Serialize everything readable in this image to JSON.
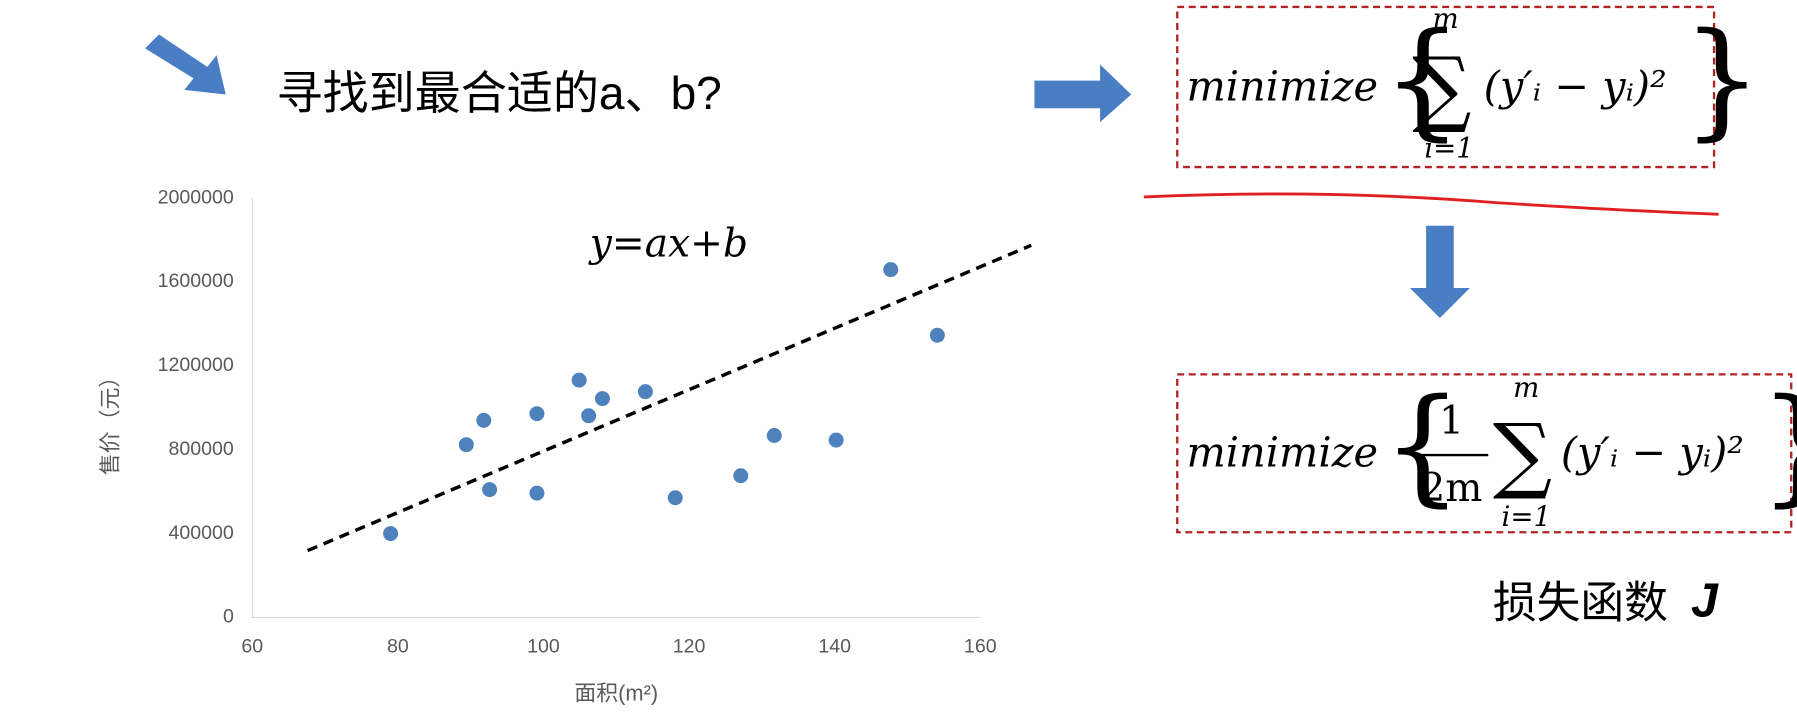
{
  "heading": "寻找到最合适的a、b?",
  "chart_data": {
    "type": "scatter",
    "equation": "y=ax+b",
    "x_label": "面积(m²)",
    "y_label": "售价（元）",
    "xlim": [
      60,
      160
    ],
    "xticks": [
      60,
      80,
      100,
      120,
      140,
      160
    ],
    "ylim": [
      0,
      2000000
    ],
    "yticks": [
      0,
      400000,
      800000,
      1200000,
      1600000,
      2000000
    ],
    "color": "#4f81bd",
    "x": [
      79,
      89.4,
      91.8,
      92.6,
      99.1,
      99.1,
      104.9,
      106.2,
      108.1,
      114,
      118.1,
      127.1,
      131.7,
      140.2,
      147.7,
      154.1
    ],
    "y": [
      400000,
      824000,
      940000,
      610000,
      972000,
      593000,
      1132000,
      962000,
      1044000,
      1077000,
      571000,
      676000,
      868000,
      846000,
      1659000,
      1346000
    ],
    "trend_line": {
      "x": [
        67.6,
        167
      ],
      "y": [
        319000,
        1775000
      ]
    }
  },
  "formula_1": {
    "word": "minimize",
    "upper": "m",
    "lower": "i=1",
    "term": "(y′ᵢ − yᵢ)²"
  },
  "formula_2": {
    "word": "minimize",
    "numerator": "1",
    "denominator": "2m",
    "upper": "m",
    "lower": "i=1",
    "term": "(y′ᵢ − yᵢ)²"
  },
  "loss_label": "损失函数",
  "loss_symbol": "J"
}
